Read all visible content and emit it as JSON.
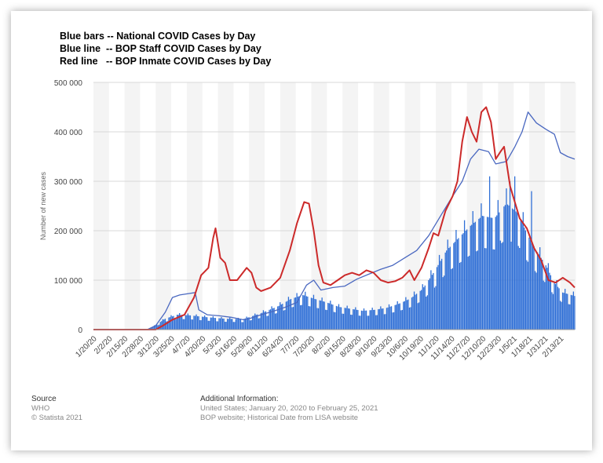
{
  "legend_lines": [
    "Blue bars -- National COVID Cases by Day",
    "Blue line  -- BOP Staff COVID Cases by Day",
    "Red line   -- BOP Inmate COVID Cases by Day"
  ],
  "colors": {
    "bars": "#2f6fd6",
    "staff_line": "#4a68c0",
    "inmate_line": "#cc2a2a",
    "band": "#f4f4f4",
    "grid": "#d9d9d9"
  },
  "footer": {
    "source_label": "Source",
    "source_lines": [
      "WHO",
      "© Statista 2021"
    ],
    "info_label": "Additional Information:",
    "info_lines": [
      "United States; January 20, 2020 to February 25, 2021",
      "BOP website; Historical Date from LISA website"
    ]
  },
  "chart_data": {
    "type": "bar",
    "title": "",
    "ylabel": "Number of new cases",
    "ylim": [
      0,
      500000
    ],
    "yticks": [
      0,
      100000,
      200000,
      300000,
      400000,
      500000
    ],
    "ytick_labels": [
      "0",
      "100 000",
      "200 000",
      "300 000",
      "400 000",
      "500 000"
    ],
    "xtick_labels": [
      "1/20/20",
      "2/2/20",
      "2/15/20",
      "2/28/20",
      "3/12/20",
      "3/25/20",
      "4/7/20",
      "4/20/20",
      "5/3/20",
      "5/16/20",
      "5/29/20",
      "6/11/20",
      "6/24/20",
      "7/7/20",
      "7/20/20",
      "8/2/20",
      "8/15/20",
      "8/28/20",
      "9/10/20",
      "9/23/20",
      "10/6/20",
      "10/19/20",
      "11/1/20",
      "11/14/20",
      "11/27/20",
      "12/10/20",
      "12/23/20",
      "1/5/21",
      "1/18/21",
      "1/31/21",
      "2/13/21"
    ],
    "x_start": "1/20/20",
    "x_end": "2/25/21",
    "national_bars": {
      "anchors": [
        [
          0,
          0
        ],
        [
          40,
          0
        ],
        [
          46,
          1500
        ],
        [
          52,
          9000
        ],
        [
          60,
          22000
        ],
        [
          70,
          30000
        ],
        [
          80,
          29000
        ],
        [
          95,
          25000
        ],
        [
          110,
          22000
        ],
        [
          125,
          21000
        ],
        [
          140,
          33000
        ],
        [
          155,
          48000
        ],
        [
          165,
          62000
        ],
        [
          175,
          70000
        ],
        [
          185,
          62000
        ],
        [
          195,
          55000
        ],
        [
          205,
          46000
        ],
        [
          215,
          42000
        ],
        [
          225,
          38000
        ],
        [
          235,
          40000
        ],
        [
          245,
          44000
        ],
        [
          255,
          52000
        ],
        [
          265,
          63000
        ],
        [
          275,
          82000
        ],
        [
          285,
          118000
        ],
        [
          295,
          160000
        ],
        [
          305,
          185000
        ],
        [
          315,
          210000
        ],
        [
          325,
          230000
        ],
        [
          335,
          225000
        ],
        [
          345,
          255000
        ],
        [
          355,
          235000
        ],
        [
          362,
          195000
        ],
        [
          370,
          160000
        ],
        [
          378,
          130000
        ],
        [
          385,
          95000
        ],
        [
          392,
          75000
        ],
        [
          402,
          68000
        ]
      ],
      "spikes": [
        [
          331,
          310000
        ],
        [
          348,
          300000
        ],
        [
          352,
          310000
        ],
        [
          340,
          180000
        ],
        [
          366,
          280000
        ]
      ]
    },
    "series": [
      {
        "name": "BOP Staff COVID Cases by Day",
        "points": [
          [
            0,
            0
          ],
          [
            45,
            0
          ],
          [
            52,
            8000
          ],
          [
            60,
            35000
          ],
          [
            66,
            65000
          ],
          [
            72,
            70000
          ],
          [
            80,
            73000
          ],
          [
            85,
            75000
          ],
          [
            88,
            40000
          ],
          [
            95,
            30000
          ],
          [
            105,
            28000
          ],
          [
            115,
            25000
          ],
          [
            125,
            20000
          ],
          [
            130,
            22000
          ],
          [
            140,
            30000
          ],
          [
            150,
            37000
          ],
          [
            160,
            45000
          ],
          [
            170,
            55000
          ],
          [
            178,
            90000
          ],
          [
            184,
            100000
          ],
          [
            190,
            80000
          ],
          [
            200,
            85000
          ],
          [
            210,
            88000
          ],
          [
            220,
            102000
          ],
          [
            230,
            112000
          ],
          [
            240,
            122000
          ],
          [
            250,
            130000
          ],
          [
            260,
            145000
          ],
          [
            270,
            160000
          ],
          [
            280,
            190000
          ],
          [
            290,
            230000
          ],
          [
            300,
            270000
          ],
          [
            308,
            300000
          ],
          [
            315,
            345000
          ],
          [
            322,
            365000
          ],
          [
            330,
            360000
          ],
          [
            336,
            335000
          ],
          [
            345,
            340000
          ],
          [
            352,
            370000
          ],
          [
            358,
            400000
          ],
          [
            363,
            440000
          ],
          [
            370,
            418000
          ],
          [
            378,
            405000
          ],
          [
            385,
            395000
          ],
          [
            390,
            358000
          ],
          [
            396,
            350000
          ],
          [
            402,
            345000
          ]
        ]
      },
      {
        "name": "BOP Inmate COVID Cases by Day",
        "points": [
          [
            0,
            0
          ],
          [
            52,
            0
          ],
          [
            58,
            8000
          ],
          [
            66,
            20000
          ],
          [
            76,
            30000
          ],
          [
            84,
            65000
          ],
          [
            90,
            110000
          ],
          [
            96,
            125000
          ],
          [
            100,
            185000
          ],
          [
            102,
            205000
          ],
          [
            106,
            145000
          ],
          [
            110,
            135000
          ],
          [
            114,
            100000
          ],
          [
            120,
            100000
          ],
          [
            128,
            125000
          ],
          [
            132,
            115000
          ],
          [
            136,
            85000
          ],
          [
            140,
            78000
          ],
          [
            148,
            85000
          ],
          [
            156,
            105000
          ],
          [
            164,
            160000
          ],
          [
            170,
            215000
          ],
          [
            176,
            258000
          ],
          [
            180,
            255000
          ],
          [
            184,
            200000
          ],
          [
            188,
            130000
          ],
          [
            192,
            95000
          ],
          [
            198,
            90000
          ],
          [
            204,
            100000
          ],
          [
            210,
            110000
          ],
          [
            216,
            115000
          ],
          [
            222,
            110000
          ],
          [
            228,
            120000
          ],
          [
            234,
            115000
          ],
          [
            240,
            100000
          ],
          [
            246,
            95000
          ],
          [
            252,
            98000
          ],
          [
            258,
            105000
          ],
          [
            264,
            120000
          ],
          [
            268,
            100000
          ],
          [
            274,
            125000
          ],
          [
            280,
            165000
          ],
          [
            284,
            195000
          ],
          [
            288,
            190000
          ],
          [
            294,
            240000
          ],
          [
            300,
            270000
          ],
          [
            304,
            300000
          ],
          [
            308,
            380000
          ],
          [
            312,
            430000
          ],
          [
            316,
            400000
          ],
          [
            320,
            380000
          ],
          [
            324,
            440000
          ],
          [
            328,
            450000
          ],
          [
            332,
            420000
          ],
          [
            336,
            345000
          ],
          [
            340,
            360000
          ],
          [
            343,
            370000
          ],
          [
            348,
            290000
          ],
          [
            356,
            225000
          ],
          [
            362,
            205000
          ],
          [
            368,
            165000
          ],
          [
            374,
            140000
          ],
          [
            380,
            100000
          ],
          [
            386,
            95000
          ],
          [
            392,
            105000
          ],
          [
            398,
            95000
          ],
          [
            402,
            85000
          ]
        ]
      }
    ]
  }
}
